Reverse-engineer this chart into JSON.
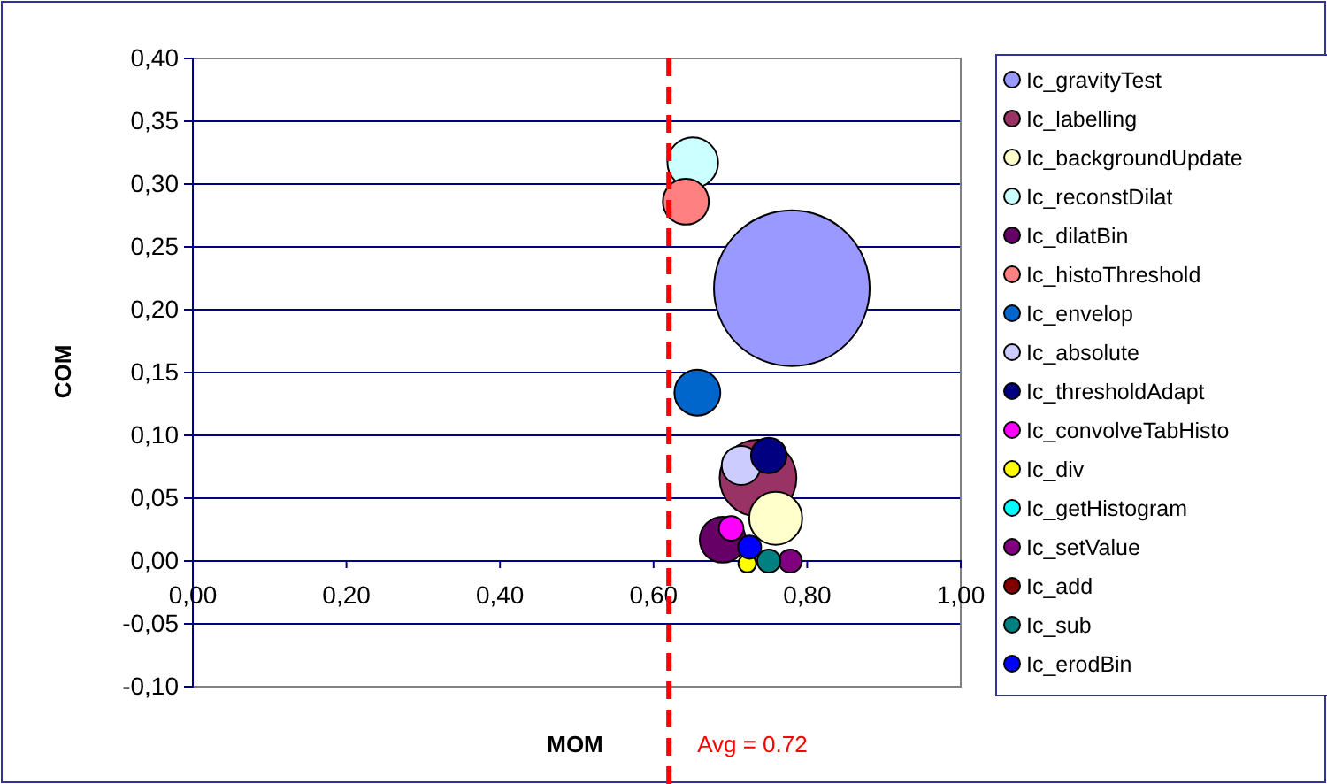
{
  "chart_data": {
    "type": "bubble",
    "xlabel": "MOM",
    "ylabel": "COM",
    "xlim": [
      0,
      1
    ],
    "xticks": [
      {
        "value": 0,
        "label": "0,00"
      },
      {
        "value": 0.2,
        "label": "0,20"
      },
      {
        "value": 0.4,
        "label": "0,40"
      },
      {
        "value": 0.6,
        "label": "0,60"
      },
      {
        "value": 0.8,
        "label": "0,80"
      },
      {
        "value": 1,
        "label": "1,00"
      }
    ],
    "ylim": [
      -0.1,
      0.4
    ],
    "yticks": [
      {
        "value": -0.1,
        "label": "-0,10"
      },
      {
        "value": -0.05,
        "label": "-0,05"
      },
      {
        "value": 0,
        "label": "0,00"
      },
      {
        "value": 0.05,
        "label": "0,05"
      },
      {
        "value": 0.1,
        "label": "0,10"
      },
      {
        "value": 0.15,
        "label": "0,15"
      },
      {
        "value": 0.2,
        "label": "0,20"
      },
      {
        "value": 0.25,
        "label": "0,25"
      },
      {
        "value": 0.3,
        "label": "0,30"
      },
      {
        "value": 0.35,
        "label": "0,35"
      },
      {
        "value": 0.4,
        "label": "0,40"
      }
    ],
    "grid": "y",
    "legend": "right",
    "ref_lines": [
      {
        "axis": "x",
        "value": 0.62,
        "color": "#ff0000",
        "line_style": "dashed"
      }
    ],
    "annotations": [
      "Avg = 0.72"
    ],
    "series": [
      {
        "name": "Ic_gravityTest",
        "color": "#9999ff",
        "x": [
          0.78
        ],
        "values": [
          0.217
        ],
        "sizes": [
          1
        ]
      },
      {
        "name": "Ic_labelling",
        "color": "#993366",
        "x": [
          0.736
        ],
        "values": [
          0.066
        ],
        "sizes": [
          0.243
        ]
      },
      {
        "name": "Ic_backgroundUpdate",
        "color": "#ffffcc",
        "x": [
          0.759
        ],
        "values": [
          0.034
        ],
        "sizes": [
          0.116
        ]
      },
      {
        "name": "Ic_reconstDilat",
        "color": "#ccffff",
        "x": [
          0.651
        ],
        "values": [
          0.317
        ],
        "sizes": [
          0.106
        ]
      },
      {
        "name": "Ic_dilatBin",
        "color": "#660066",
        "x": [
          0.69
        ],
        "values": [
          0.017
        ],
        "sizes": [
          0.087
        ]
      },
      {
        "name": "Ic_histoThreshold",
        "color": "#ff8080",
        "x": [
          0.642
        ],
        "values": [
          0.286
        ],
        "sizes": [
          0.087
        ]
      },
      {
        "name": "Ic_envelop",
        "color": "#0066cc",
        "x": [
          0.657
        ],
        "values": [
          0.134
        ],
        "sizes": [
          0.087
        ]
      },
      {
        "name": "Ic_absolute",
        "color": "#ccccff",
        "x": [
          0.714
        ],
        "values": [
          0.076
        ],
        "sizes": [
          0.0625
        ]
      },
      {
        "name": "Ic_thresholdAdapt",
        "color": "#000080",
        "x": [
          0.75
        ],
        "values": [
          0.084
        ],
        "sizes": [
          0.052
        ]
      },
      {
        "name": "Ic_convolveTabHisto",
        "color": "#ff00ff",
        "x": [
          0.701
        ],
        "values": [
          0.026
        ],
        "sizes": [
          0.025
        ]
      },
      {
        "name": "Ic_div",
        "color": "#ffff00",
        "x": [
          0.722
        ],
        "values": [
          -0.002
        ],
        "sizes": [
          0.013
        ]
      },
      {
        "name": "Ic_getHistogram",
        "color": "#00ffff",
        "x": [
          null
        ],
        "values": [
          null
        ],
        "sizes": [
          null
        ]
      },
      {
        "name": "Ic_setValue",
        "color": "#800080",
        "x": [
          0.778
        ],
        "values": [
          0
        ],
        "sizes": [
          0.022
        ]
      },
      {
        "name": "Ic_add",
        "color": "#800000",
        "x": [
          null
        ],
        "values": [
          null
        ],
        "sizes": [
          null
        ]
      },
      {
        "name": "Ic_sub",
        "color": "#008080",
        "x": [
          0.75
        ],
        "values": [
          0
        ],
        "sizes": [
          0.022
        ]
      },
      {
        "name": "Ic_erodBin",
        "color": "#0000ff",
        "x": [
          0.725
        ],
        "values": [
          0.011
        ],
        "sizes": [
          0.022
        ]
      }
    ]
  }
}
